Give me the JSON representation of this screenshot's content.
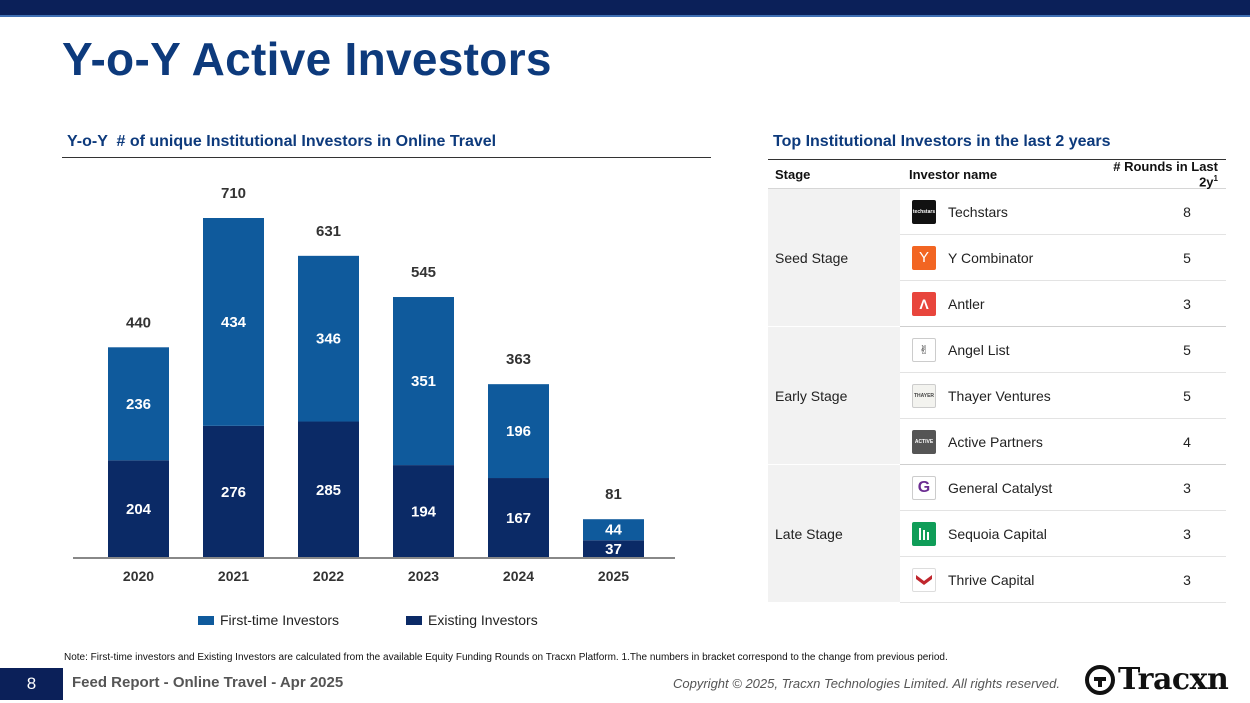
{
  "page": {
    "title": "Y-o-Y Active Investors",
    "chart_section_title": "Y-o-Y  # of unique Institutional Investors in Online Travel",
    "table_section_title": "Top Institutional Investors in the last 2 years"
  },
  "colors": {
    "first_time": "#0f5a9c",
    "existing": "#0b2a66",
    "title": "#0d3a7c"
  },
  "chart_data": {
    "type": "bar",
    "stacked": true,
    "title": "Y-o-Y  # of unique Institutional Investors in Online Travel",
    "categories": [
      "2020",
      "2021",
      "2022",
      "2023",
      "2024",
      "2025"
    ],
    "series": [
      {
        "name": "Existing Investors",
        "values": [
          204,
          276,
          285,
          194,
          167,
          37
        ]
      },
      {
        "name": "First-time Investors",
        "values": [
          236,
          434,
          346,
          351,
          196,
          44
        ]
      }
    ],
    "totals": [
      440,
      710,
      631,
      545,
      363,
      81
    ],
    "ylim": [
      0,
      710
    ],
    "legend": [
      "First-time Investors",
      "Existing Investors"
    ],
    "legend_position": "bottom"
  },
  "table": {
    "headers": {
      "stage": "Stage",
      "name": "Investor name",
      "rounds": "# Rounds in Last 2y",
      "rounds_sup": "1"
    },
    "groups": [
      {
        "stage": "Seed Stage",
        "rows": [
          {
            "name": "Techstars",
            "rounds": "8",
            "logo": "techstars-logo",
            "logo_text": "techstars"
          },
          {
            "name": "Y Combinator",
            "rounds": "5",
            "logo": "y-combinator-logo",
            "logo_text": "Y"
          },
          {
            "name": "Antler",
            "rounds": "3",
            "logo": "antler-logo",
            "logo_text": "Λ"
          }
        ]
      },
      {
        "stage": "Early Stage",
        "rows": [
          {
            "name": "Angel List",
            "rounds": "5",
            "logo": "angellist-logo",
            "logo_text": "✌"
          },
          {
            "name": "Thayer Ventures",
            "rounds": "5",
            "logo": "thayer-ventures-logo",
            "logo_text": "THAYER"
          },
          {
            "name": "Active Partners",
            "rounds": "4",
            "logo": "active-partners-logo",
            "logo_text": "ACTIVE"
          }
        ]
      },
      {
        "stage": "Late Stage",
        "rows": [
          {
            "name": "General Catalyst",
            "rounds": "3",
            "logo": "general-catalyst-logo",
            "logo_text": "G"
          },
          {
            "name": "Sequoia Capital",
            "rounds": "3",
            "logo": "sequoia-capital-logo",
            "logo_text": ""
          },
          {
            "name": "Thrive Capital",
            "rounds": "3",
            "logo": "thrive-capital-logo",
            "logo_text": ""
          }
        ]
      }
    ]
  },
  "note": "Note: First-time investors and Existing Investors are calculated from the available Equity Funding Rounds on Tracxn Platform. 1.The numbers in bracket correspond to the change from previous period.",
  "footer": {
    "page_number": "8",
    "report_name": "Feed Report - Online Travel - Apr 2025",
    "copyright": "Copyright © 2025, Tracxn Technologies Limited. All rights reserved.",
    "brand": "Tracxn"
  }
}
